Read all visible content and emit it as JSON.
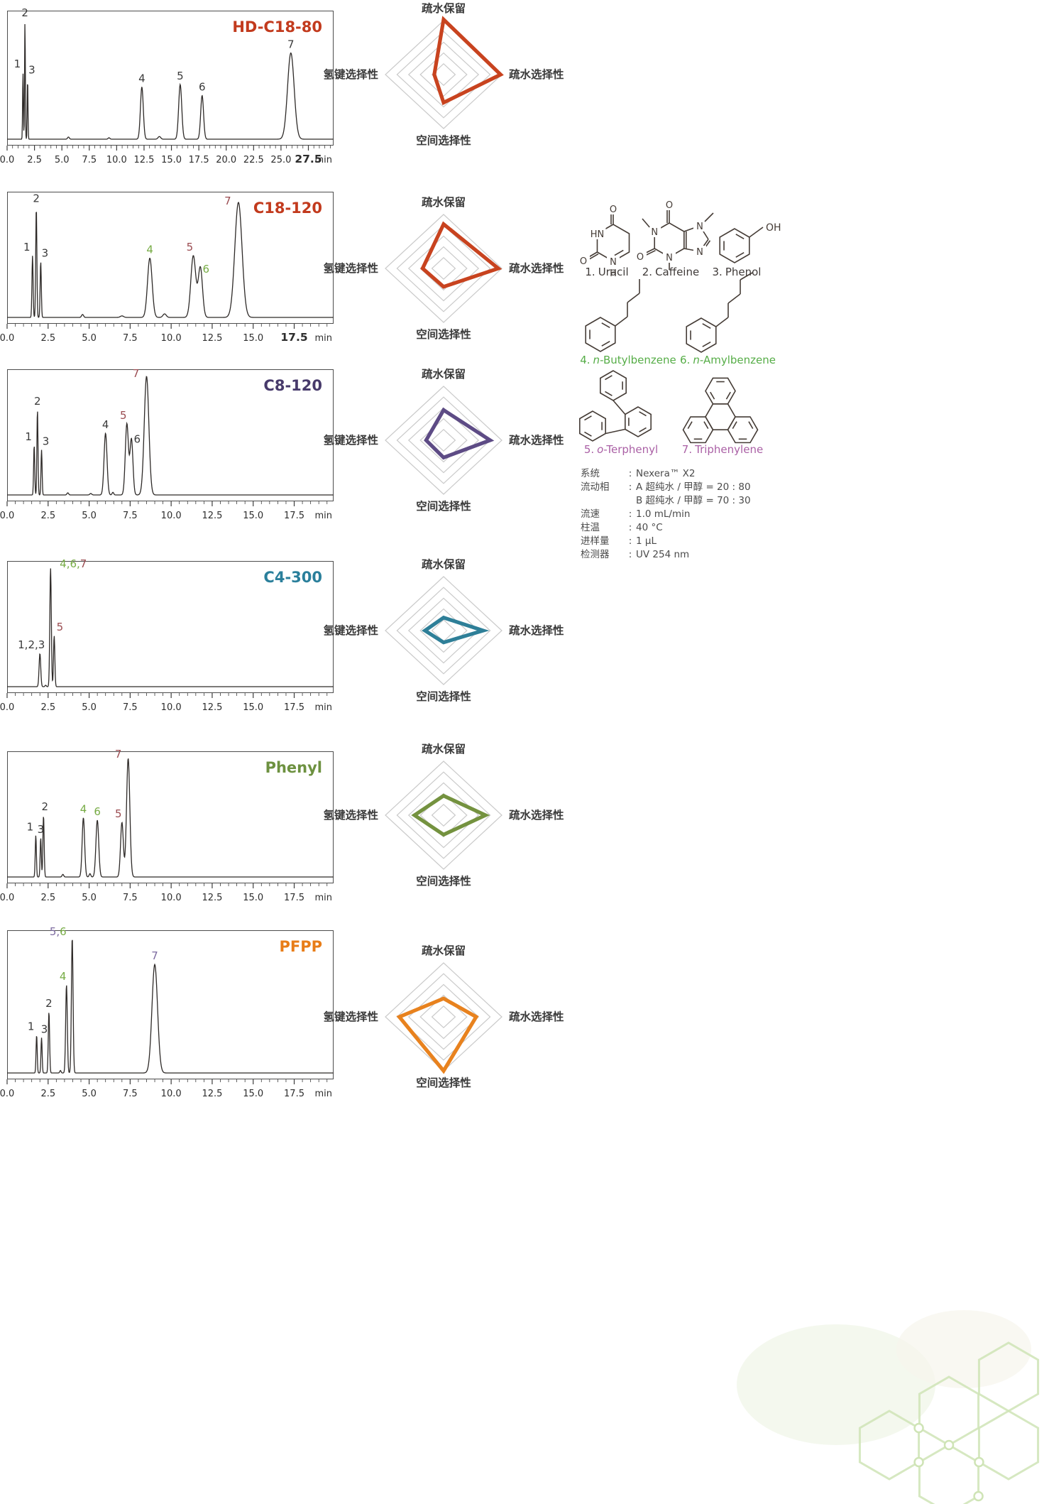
{
  "radar_axes": {
    "top": "疏水保留",
    "right": "疏水选择性",
    "bottom": "空间选择性",
    "left": "氢键选择性"
  },
  "axis_unit": "min",
  "colors": {
    "curve": "#2e2a28",
    "grid": "#cacaca",
    "tick_text": "#2d2d2d",
    "peak_green": "#76ab44",
    "peak_maroon": "#9a4b50",
    "peak_purple": "#7d6ba0",
    "caption_green": "#56ad47",
    "caption_purple": "#aa60a5",
    "structure_line": "#453c36"
  },
  "chart_data": [
    {
      "type": "line",
      "panel": 1,
      "kind": "chromatogram",
      "title": "HD-C18-80",
      "title_color": "#c23a1d",
      "x_max": 29.8,
      "xlabel": "min",
      "bold_last_tick": true,
      "x_ticks": [
        "0.0",
        "2.5",
        "5.0",
        "7.5",
        "10.0",
        "12.5",
        "15.0",
        "17.5",
        "20.0",
        "22.5",
        "25.0",
        "27.5"
      ],
      "peaks": [
        {
          "label": "1",
          "t": 1.45,
          "h": 0.55,
          "s": 0.035,
          "dx": -8,
          "color": "#3a3a3a"
        },
        {
          "label": "2",
          "t": 1.63,
          "h": 0.97,
          "s": 0.035,
          "color": "#3a3a3a"
        },
        {
          "label": "3",
          "t": 1.87,
          "h": 0.5,
          "s": 0.035,
          "dx": 6,
          "color": "#3a3a3a"
        },
        {
          "label": "4",
          "t": 12.3,
          "h": 0.43,
          "s": 0.13,
          "color": "#3a3a3a"
        },
        {
          "label": "5",
          "t": 15.8,
          "h": 0.45,
          "s": 0.14,
          "color": "#3a3a3a"
        },
        {
          "label": "6",
          "t": 17.8,
          "h": 0.36,
          "s": 0.13,
          "color": "#3a3a3a"
        },
        {
          "label": "7",
          "t": 25.9,
          "h": 0.71,
          "s": 0.3,
          "color": "#3a3a3a"
        }
      ],
      "bumps": [
        [
          5.6,
          0.018,
          0.08
        ],
        [
          9.3,
          0.012,
          0.08
        ],
        [
          13.9,
          0.022,
          0.12
        ]
      ]
    },
    {
      "type": "radar",
      "panel": 1,
      "title": "HD-C18-80",
      "color": "#c8431f",
      "max": 5,
      "rings": 5,
      "values": {
        "top": 5.1,
        "right": 4.9,
        "bottom": 2.6,
        "left": 0.8
      }
    },
    {
      "type": "line",
      "panel": 2,
      "kind": "chromatogram",
      "title": "C18-120",
      "title_color": "#c23a1d",
      "x_max": 19.9,
      "xlabel": "min",
      "bold_last_tick": true,
      "x_ticks": [
        "0.0",
        "2.5",
        "5.0",
        "7.5",
        "10.0",
        "12.5",
        "15.0",
        "17.5"
      ],
      "peaks": [
        {
          "label": "1",
          "t": 1.55,
          "h": 0.52,
          "s": 0.035,
          "dx": -8,
          "color": "#3a3a3a"
        },
        {
          "label": "2",
          "t": 1.78,
          "h": 0.93,
          "s": 0.035,
          "color": "#3a3a3a"
        },
        {
          "label": "3",
          "t": 2.05,
          "h": 0.47,
          "s": 0.035,
          "dx": 6,
          "color": "#3a3a3a"
        },
        {
          "label": "4",
          "t": 8.7,
          "h": 0.5,
          "s": 0.14,
          "color": "#76ab44"
        },
        {
          "label": "5",
          "t": 11.35,
          "h": 0.52,
          "s": 0.15,
          "dx": -5,
          "color": "#9a4b50"
        },
        {
          "label": "6",
          "t": 11.78,
          "h": 0.42,
          "s": 0.13,
          "dx": 8,
          "dy": 14,
          "color": "#76ab44"
        },
        {
          "label": "7",
          "t": 14.1,
          "h": 0.97,
          "s": 0.22,
          "dx": -15,
          "dy": 10,
          "color": "#9a4b50"
        }
      ],
      "bumps": [
        [
          4.6,
          0.025,
          0.06
        ],
        [
          7.0,
          0.013,
          0.1
        ],
        [
          9.6,
          0.03,
          0.1
        ]
      ]
    },
    {
      "type": "radar",
      "panel": 2,
      "title": "C18-120",
      "color": "#c8431f",
      "max": 5,
      "rings": 5,
      "values": {
        "top": 4.1,
        "right": 4.7,
        "bottom": 1.7,
        "left": 1.8
      }
    },
    {
      "type": "line",
      "panel": 3,
      "kind": "chromatogram",
      "title": "C8-120",
      "title_color": "#473a6b",
      "x_max": 19.9,
      "xlabel": "min",
      "bold_last_tick": false,
      "x_ticks": [
        "0.0",
        "2.5",
        "5.0",
        "7.5",
        "10.0",
        "12.5",
        "15.0",
        "17.5"
      ],
      "peaks": [
        {
          "label": "1",
          "t": 1.65,
          "h": 0.42,
          "s": 0.033,
          "dx": -8,
          "color": "#3a3a3a"
        },
        {
          "label": "2",
          "t": 1.85,
          "h": 0.72,
          "s": 0.033,
          "color": "#3a3a3a"
        },
        {
          "label": "3",
          "t": 2.1,
          "h": 0.38,
          "s": 0.033,
          "dx": 6,
          "color": "#3a3a3a"
        },
        {
          "label": "4",
          "t": 6.0,
          "h": 0.52,
          "s": 0.09,
          "color": "#3a3a3a"
        },
        {
          "label": "5",
          "t": 7.3,
          "h": 0.6,
          "s": 0.095,
          "dx": -5,
          "color": "#9a4b50"
        },
        {
          "label": "6",
          "t": 7.58,
          "h": 0.47,
          "s": 0.09,
          "dx": 8,
          "dy": 12,
          "color": "#3a3a3a"
        },
        {
          "label": "7",
          "t": 8.5,
          "h": 1.0,
          "s": 0.14,
          "dx": -15,
          "dy": 8,
          "color": "#9a4b50"
        }
      ],
      "bumps": [
        [
          3.7,
          0.018,
          0.05
        ],
        [
          5.1,
          0.012,
          0.06
        ],
        [
          6.45,
          0.022,
          0.05
        ]
      ]
    },
    {
      "type": "radar",
      "panel": 3,
      "title": "C8-120",
      "color": "#5d4b85",
      "max": 5,
      "rings": 5,
      "values": {
        "top": 2.8,
        "right": 4.0,
        "bottom": 1.6,
        "left": 1.5
      }
    },
    {
      "type": "line",
      "panel": 4,
      "kind": "chromatogram",
      "title": "C4-300",
      "title_color": "#2a7f9b",
      "x_max": 19.9,
      "xlabel": "min",
      "bold_last_tick": false,
      "x_ticks": [
        "0.0",
        "2.5",
        "5.0",
        "7.5",
        "10.0",
        "12.5",
        "15.0",
        "17.5"
      ],
      "peaks": [
        {
          "label": "1,2,3",
          "t": 2.0,
          "h": 0.28,
          "s": 0.05,
          "dx": -12,
          "color": "#3a3a3a"
        },
        {
          "segments": [
            {
              "text": "4,6,",
              "color": "#76ab44"
            },
            {
              "text": "7",
              "color": "#9a4b50"
            }
          ],
          "t": 2.65,
          "h": 1.0,
          "s": 0.045,
          "dx": 32,
          "dy": 6
        },
        {
          "label": "5",
          "t": 2.87,
          "h": 0.43,
          "s": 0.04,
          "dx": 8,
          "color": "#9a4b50"
        }
      ],
      "bumps": [
        [
          2.35,
          0.012,
          0.04
        ]
      ]
    },
    {
      "type": "radar",
      "panel": 4,
      "title": "C4-300",
      "color": "#2e7f98",
      "max": 5,
      "rings": 5,
      "values": {
        "top": 1.2,
        "right": 3.4,
        "bottom": 1.1,
        "left": 1.6
      }
    },
    {
      "type": "line",
      "panel": 5,
      "kind": "chromatogram",
      "title": "Phenyl",
      "title_color": "#6d9140",
      "x_max": 19.9,
      "xlabel": "min",
      "bold_last_tick": false,
      "x_ticks": [
        "0.0",
        "2.5",
        "5.0",
        "7.5",
        "10.0",
        "12.5",
        "15.0",
        "17.5"
      ],
      "peaks": [
        {
          "label": "1",
          "t": 1.75,
          "h": 0.35,
          "s": 0.035,
          "dx": -8,
          "color": "#3a3a3a"
        },
        {
          "label": "3",
          "t": 2.05,
          "h": 0.33,
          "s": 0.035,
          "color": "#3a3a3a"
        },
        {
          "label": "2",
          "t": 2.22,
          "h": 0.52,
          "s": 0.038,
          "dx": 2,
          "color": "#3a3a3a"
        },
        {
          "label": "4",
          "t": 4.65,
          "h": 0.5,
          "s": 0.075,
          "color": "#76ab44"
        },
        {
          "label": "6",
          "t": 5.5,
          "h": 0.48,
          "s": 0.085,
          "color": "#76ab44"
        },
        {
          "label": "5",
          "t": 7.0,
          "h": 0.46,
          "s": 0.085,
          "dx": -5,
          "color": "#9a4b50"
        },
        {
          "label": "7",
          "t": 7.38,
          "h": 1.0,
          "s": 0.1,
          "dx": -14,
          "dy": 6,
          "color": "#9a4b50"
        }
      ],
      "bumps": [
        [
          3.4,
          0.022,
          0.05
        ],
        [
          5.05,
          0.028,
          0.05
        ]
      ]
    },
    {
      "type": "radar",
      "panel": 5,
      "title": "Phenyl",
      "color": "#74923f",
      "max": 5,
      "rings": 5,
      "values": {
        "top": 1.8,
        "right": 3.6,
        "bottom": 1.8,
        "left": 2.5
      }
    },
    {
      "type": "line",
      "panel": 6,
      "kind": "chromatogram",
      "title": "PFPP",
      "title_color": "#e87d18",
      "x_max": 19.9,
      "xlabel": "min",
      "bold_last_tick": false,
      "x_ticks": [
        "0.0",
        "2.5",
        "5.0",
        "7.5",
        "10.0",
        "12.5",
        "15.0",
        "17.5"
      ],
      "peaks": [
        {
          "label": "1",
          "t": 1.8,
          "h": 0.28,
          "s": 0.035,
          "dx": -8,
          "color": "#3a3a3a"
        },
        {
          "label": "3",
          "t": 2.1,
          "h": 0.26,
          "s": 0.035,
          "dx": 4,
          "color": "#3a3a3a"
        },
        {
          "label": "2",
          "t": 2.55,
          "h": 0.45,
          "s": 0.04,
          "color": "#3a3a3a"
        },
        {
          "label": "4",
          "t": 3.62,
          "h": 0.65,
          "s": 0.05,
          "dx": -5,
          "color": "#76ab44"
        },
        {
          "segments": [
            {
              "text": "5,",
              "color": "#7d6ba0"
            },
            {
              "text": "6",
              "color": "#76ab44"
            }
          ],
          "t": 3.97,
          "h": 1.0,
          "s": 0.05,
          "dx": -20,
          "dy": 4
        },
        {
          "label": "7",
          "t": 9.0,
          "h": 0.8,
          "s": 0.17,
          "color": "#7d6ba0"
        }
      ],
      "bumps": [
        [
          3.25,
          0.018,
          0.04
        ]
      ]
    },
    {
      "type": "radar",
      "panel": 6,
      "title": "PFPP",
      "color": "#e8821e",
      "max": 5,
      "rings": 5,
      "values": {
        "top": 1.7,
        "right": 2.8,
        "bottom": 5.0,
        "left": 3.8
      }
    }
  ],
  "compounds": [
    {
      "num": "1.",
      "prefix": "",
      "name": "Uracil",
      "color": "#3f3a38"
    },
    {
      "num": "2.",
      "prefix": "",
      "name": "Caffeine",
      "color": "#3f3a38"
    },
    {
      "num": "3.",
      "prefix": "",
      "name": "Phenol",
      "color": "#3f3a38"
    },
    {
      "num": "4.",
      "prefix": "n",
      "name": "-Butylbenzene",
      "color": "#56ad47"
    },
    {
      "num": "6.",
      "prefix": "n",
      "name": "-Amylbenzene",
      "color": "#56ad47"
    },
    {
      "num": "5.",
      "prefix": "o",
      "name": "-Terphenyl",
      "color": "#aa60a5"
    },
    {
      "num": "7.",
      "prefix": "",
      "name": "Triphenylene",
      "color": "#aa60a5"
    }
  ],
  "atom_labels": {
    "uracil": {
      "o_top": "O",
      "o_left": "O",
      "hn": "HN",
      "n_bottom": "N",
      "h_bottom": "H"
    },
    "caffeine": {
      "o_top": "O",
      "o_left": "O",
      "n1": "N",
      "n3": "N",
      "n7": "N",
      "n9": "N"
    },
    "phenol": {
      "oh": "OH"
    }
  },
  "conditions": {
    "separator": ":",
    "rows": [
      {
        "label": "系统",
        "value": "Nexera™ X2"
      },
      {
        "label": "流动相",
        "value": "A 超纯水 / 甲醇 = 20 : 80",
        "value2": "B 超纯水 / 甲醇 = 70 : 30"
      },
      {
        "label": "流速",
        "value": "1.0 mL/min"
      },
      {
        "label": "柱温",
        "value": "40 °C"
      },
      {
        "label": "进样量",
        "value": "1 μL"
      },
      {
        "label": "检测器",
        "value": "UV 254 nm"
      }
    ]
  }
}
